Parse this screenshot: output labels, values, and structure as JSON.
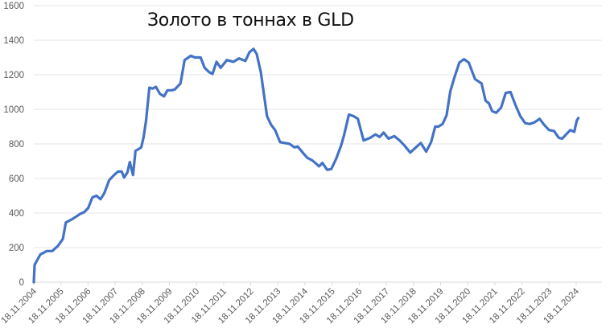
{
  "chart_data": {
    "type": "line",
    "title": "Золото в тоннах в GLD",
    "xlabel": "",
    "ylabel": "",
    "ylim": [
      0,
      1600
    ],
    "yticks": [
      0,
      200,
      400,
      600,
      800,
      1000,
      1200,
      1400,
      1600
    ],
    "xticks": [
      "18.11.2004",
      "18.11.2005",
      "18.11.2006",
      "18.11.2007",
      "18.11.2008",
      "18.11.2009",
      "18.11.2010",
      "18.11.2011",
      "18.11.2012",
      "18.11.2013",
      "18.11.2014",
      "18.11.2015",
      "18.11.2016",
      "18.11.2017",
      "18.11.2018",
      "18.11.2019",
      "18.11.2020",
      "18.11.2021",
      "18.11.2022",
      "18.11.2023",
      "18.11.2024"
    ],
    "grid": "horizontal",
    "legend": "none",
    "series": [
      {
        "name": "Золото в тоннах в GLD",
        "color": "#4472C4",
        "x_year": [
          2004.88,
          2004.91,
          2005.03,
          2005.12,
          2005.36,
          2005.56,
          2005.77,
          2005.95,
          2006.06,
          2006.3,
          2006.45,
          2006.59,
          2006.74,
          2006.89,
          2007.04,
          2007.19,
          2007.34,
          2007.48,
          2007.66,
          2007.84,
          2007.99,
          2008.12,
          2008.21,
          2008.33,
          2008.42,
          2008.54,
          2008.63,
          2008.75,
          2008.84,
          2008.93,
          2009.02,
          2009.14,
          2009.26,
          2009.38,
          2009.53,
          2009.68,
          2009.81,
          2009.96,
          2010.08,
          2010.17,
          2010.29,
          2010.44,
          2010.67,
          2010.82,
          2011.03,
          2011.18,
          2011.35,
          2011.47,
          2011.62,
          2011.77,
          2012.0,
          2012.24,
          2012.45,
          2012.68,
          2012.83,
          2012.98,
          2013.1,
          2013.25,
          2013.4,
          2013.48,
          2013.63,
          2013.78,
          2013.96,
          2014.13,
          2014.31,
          2014.49,
          2014.61,
          2014.82,
          2014.96,
          2015.14,
          2015.26,
          2015.4,
          2015.52,
          2015.7,
          2015.85,
          2016.03,
          2016.21,
          2016.32,
          2016.5,
          2016.68,
          2016.83,
          2017.04,
          2017.28,
          2017.48,
          2017.63,
          2017.78,
          2017.96,
          2018.17,
          2018.37,
          2018.55,
          2018.76,
          2018.97,
          2019.15,
          2019.35,
          2019.53,
          2019.68,
          2019.8,
          2019.95,
          2020.1,
          2020.24,
          2020.39,
          2020.57,
          2020.74,
          2020.92,
          2021.15,
          2021.39,
          2021.54,
          2021.66,
          2021.78,
          2021.93,
          2022.11,
          2022.28,
          2022.46,
          2022.64,
          2022.82,
          2023.0,
          2023.17,
          2023.35,
          2023.53,
          2023.7,
          2023.88,
          2024.06,
          2024.24,
          2024.36,
          2024.48,
          2024.66,
          2024.81,
          2024.9,
          2024.96
        ],
        "values": [
          0,
          100,
          135,
          160,
          180,
          180,
          210,
          250,
          345,
          365,
          380,
          395,
          405,
          430,
          490,
          500,
          480,
          515,
          590,
          620,
          640,
          640,
          605,
          635,
          695,
          620,
          760,
          770,
          780,
          840,
          935,
          1125,
          1120,
          1130,
          1090,
          1075,
          1110,
          1110,
          1115,
          1130,
          1150,
          1285,
          1310,
          1300,
          1300,
          1240,
          1215,
          1205,
          1275,
          1240,
          1285,
          1275,
          1295,
          1280,
          1330,
          1350,
          1320,
          1215,
          1050,
          960,
          910,
          880,
          810,
          805,
          800,
          780,
          785,
          745,
          720,
          705,
          690,
          670,
          690,
          650,
          655,
          715,
          790,
          850,
          970,
          960,
          945,
          820,
          835,
          855,
          840,
          865,
          830,
          845,
          820,
          790,
          750,
          780,
          805,
          755,
          810,
          900,
          900,
          915,
          965,
          1105,
          1185,
          1270,
          1290,
          1270,
          1175,
          1150,
          1050,
          1035,
          990,
          980,
          1010,
          1095,
          1100,
          1025,
          960,
          920,
          915,
          925,
          945,
          910,
          880,
          875,
          835,
          830,
          850,
          880,
          870,
          935,
          950,
          965,
          990,
          1035,
          1065
        ]
      }
    ]
  }
}
